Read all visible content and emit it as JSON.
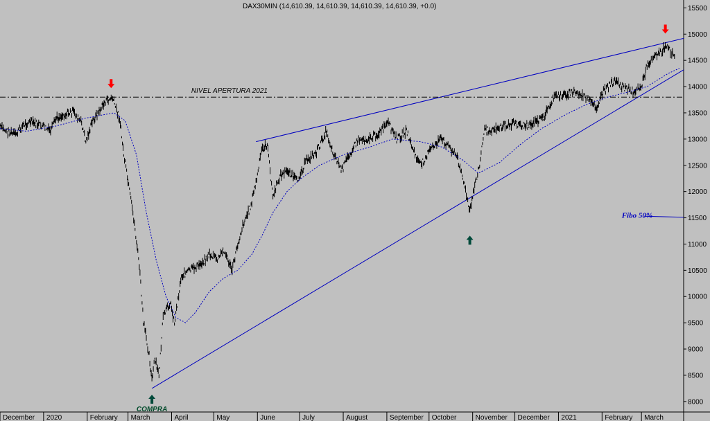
{
  "chart_data": {
    "type": "line",
    "title": "DAX30MIN (14,610.39, 14,610.39, 14,610.39, 14,610.39, +0.0)",
    "xlabel": "",
    "ylabel": "",
    "ylim": [
      7800,
      15650
    ],
    "y_ticks": [
      8000,
      8500,
      9000,
      9500,
      10000,
      10500,
      11000,
      11500,
      12000,
      12500,
      13000,
      13500,
      14000,
      14500,
      15000,
      15500
    ],
    "x_range": [
      "2019-12-01",
      "2021-03-31"
    ],
    "month_labels": [
      {
        "label": "December",
        "date": "2019-12-01"
      },
      {
        "label": "2020",
        "date": "2020-01-01"
      },
      {
        "label": "February",
        "date": "2020-02-01"
      },
      {
        "label": "March",
        "date": "2020-03-01"
      },
      {
        "label": "April",
        "date": "2020-04-01"
      },
      {
        "label": "May",
        "date": "2020-05-01"
      },
      {
        "label": "June",
        "date": "2020-06-01"
      },
      {
        "label": "July",
        "date": "2020-07-01"
      },
      {
        "label": "August",
        "date": "2020-08-01"
      },
      {
        "label": "September",
        "date": "2020-09-01"
      },
      {
        "label": "October",
        "date": "2020-10-01"
      },
      {
        "label": "November",
        "date": "2020-11-01"
      },
      {
        "label": "December",
        "date": "2020-12-01"
      },
      {
        "label": "2021",
        "date": "2021-01-01"
      },
      {
        "label": "February",
        "date": "2021-02-01"
      },
      {
        "label": "March",
        "date": "2021-03-01"
      }
    ],
    "series": [
      {
        "color": "#000000",
        "style": "dense-bars",
        "points": [
          [
            "2019-12-01",
            13230
          ],
          [
            "2019-12-06",
            13150
          ],
          [
            "2019-12-12",
            13080
          ],
          [
            "2019-12-18",
            13280
          ],
          [
            "2019-12-23",
            13320
          ],
          [
            "2019-12-31",
            13250
          ],
          [
            "2020-01-06",
            13150
          ],
          [
            "2020-01-10",
            13400
          ],
          [
            "2020-01-17",
            13480
          ],
          [
            "2020-01-22",
            13520
          ],
          [
            "2020-01-28",
            13300
          ],
          [
            "2020-01-31",
            12950
          ],
          [
            "2020-02-05",
            13350
          ],
          [
            "2020-02-10",
            13550
          ],
          [
            "2020-02-14",
            13720
          ],
          [
            "2020-02-19",
            13780
          ],
          [
            "2020-02-24",
            13400
          ],
          [
            "2020-02-27",
            12700
          ],
          [
            "2020-03-02",
            12000
          ],
          [
            "2020-03-05",
            11500
          ],
          [
            "2020-03-09",
            10600
          ],
          [
            "2020-03-12",
            9500
          ],
          [
            "2020-03-16",
            8900
          ],
          [
            "2020-03-18",
            8400
          ],
          [
            "2020-03-20",
            8800
          ],
          [
            "2020-03-23",
            8500
          ],
          [
            "2020-03-26",
            9600
          ],
          [
            "2020-03-31",
            9900
          ],
          [
            "2020-04-03",
            9500
          ],
          [
            "2020-04-08",
            10400
          ],
          [
            "2020-04-14",
            10500
          ],
          [
            "2020-04-21",
            10600
          ],
          [
            "2020-04-28",
            10800
          ],
          [
            "2020-05-04",
            10700
          ],
          [
            "2020-05-08",
            10900
          ],
          [
            "2020-05-14",
            10500
          ],
          [
            "2020-05-18",
            11000
          ],
          [
            "2020-05-22",
            11400
          ],
          [
            "2020-05-27",
            11700
          ],
          [
            "2020-06-01",
            12300
          ],
          [
            "2020-06-04",
            12800
          ],
          [
            "2020-06-08",
            12900
          ],
          [
            "2020-06-12",
            11900
          ],
          [
            "2020-06-17",
            12300
          ],
          [
            "2020-06-23",
            12400
          ],
          [
            "2020-06-29",
            12200
          ],
          [
            "2020-07-06",
            12600
          ],
          [
            "2020-07-13",
            12750
          ],
          [
            "2020-07-20",
            13150
          ],
          [
            "2020-07-24",
            12800
          ],
          [
            "2020-07-31",
            12400
          ],
          [
            "2020-08-05",
            12700
          ],
          [
            "2020-08-12",
            13000
          ],
          [
            "2020-08-19",
            13000
          ],
          [
            "2020-08-26",
            13100
          ],
          [
            "2020-09-02",
            13300
          ],
          [
            "2020-09-08",
            13000
          ],
          [
            "2020-09-15",
            13150
          ],
          [
            "2020-09-21",
            12700
          ],
          [
            "2020-09-25",
            12500
          ],
          [
            "2020-10-02",
            12800
          ],
          [
            "2020-10-09",
            13000
          ],
          [
            "2020-10-14",
            12900
          ],
          [
            "2020-10-20",
            12700
          ],
          [
            "2020-10-23",
            12500
          ],
          [
            "2020-10-27",
            12000
          ],
          [
            "2020-10-30",
            11600
          ],
          [
            "2020-11-03",
            12200
          ],
          [
            "2020-11-06",
            12500
          ],
          [
            "2020-11-09",
            13150
          ],
          [
            "2020-11-16",
            13200
          ],
          [
            "2020-11-24",
            13250
          ],
          [
            "2020-12-01",
            13300
          ],
          [
            "2020-12-08",
            13250
          ],
          [
            "2020-12-14",
            13300
          ],
          [
            "2020-12-21",
            13400
          ],
          [
            "2020-12-29",
            13800
          ],
          [
            "2021-01-06",
            13850
          ],
          [
            "2021-01-12",
            13900
          ],
          [
            "2021-01-20",
            13800
          ],
          [
            "2021-01-28",
            13600
          ],
          [
            "2021-02-02",
            13900
          ],
          [
            "2021-02-09",
            14100
          ],
          [
            "2021-02-16",
            14000
          ],
          [
            "2021-02-23",
            13900
          ],
          [
            "2021-03-01",
            14000
          ],
          [
            "2021-03-05",
            14400
          ],
          [
            "2021-03-10",
            14600
          ],
          [
            "2021-03-15",
            14650
          ],
          [
            "2021-03-18",
            14780
          ],
          [
            "2021-03-22",
            14650
          ],
          [
            "2021-03-25",
            14610
          ]
        ]
      },
      {
        "color": "#0000c0",
        "style": "dotted",
        "points": [
          [
            "2019-12-01",
            13200
          ],
          [
            "2019-12-20",
            13150
          ],
          [
            "2020-01-10",
            13250
          ],
          [
            "2020-01-31",
            13400
          ],
          [
            "2020-02-20",
            13500
          ],
          [
            "2020-02-28",
            13350
          ],
          [
            "2020-03-07",
            12700
          ],
          [
            "2020-03-14",
            11600
          ],
          [
            "2020-03-21",
            10700
          ],
          [
            "2020-03-28",
            10000
          ],
          [
            "2020-04-04",
            9600
          ],
          [
            "2020-04-11",
            9500
          ],
          [
            "2020-04-18",
            9700
          ],
          [
            "2020-04-28",
            10100
          ],
          [
            "2020-05-08",
            10350
          ],
          [
            "2020-05-18",
            10500
          ],
          [
            "2020-05-28",
            10800
          ],
          [
            "2020-06-05",
            11200
          ],
          [
            "2020-06-12",
            11600
          ],
          [
            "2020-06-22",
            12000
          ],
          [
            "2020-07-02",
            12250
          ],
          [
            "2020-07-15",
            12500
          ],
          [
            "2020-08-01",
            12700
          ],
          [
            "2020-08-20",
            12850
          ],
          [
            "2020-09-05",
            13000
          ],
          [
            "2020-09-25",
            12950
          ],
          [
            "2020-10-10",
            12850
          ],
          [
            "2020-10-25",
            12600
          ],
          [
            "2020-11-05",
            12350
          ],
          [
            "2020-11-20",
            12550
          ],
          [
            "2020-12-05",
            12900
          ],
          [
            "2020-12-20",
            13200
          ],
          [
            "2021-01-05",
            13450
          ],
          [
            "2021-01-20",
            13650
          ],
          [
            "2021-02-05",
            13800
          ],
          [
            "2021-02-20",
            13900
          ],
          [
            "2021-03-05",
            14000
          ],
          [
            "2021-03-20",
            14250
          ],
          [
            "2021-03-28",
            14350
          ]
        ]
      }
    ],
    "trendlines": [
      {
        "color": "#0000c0",
        "from": [
          "2020-03-18",
          8250
        ],
        "to": [
          "2021-03-31",
          14320
        ]
      },
      {
        "color": "#0000c0",
        "from": [
          "2020-05-31",
          12950
        ],
        "to": [
          "2021-03-31",
          14920
        ]
      },
      {
        "color": "#000000",
        "style": "dash-dot",
        "from": [
          "2019-12-01",
          13800
        ],
        "to": [
          "2021-03-31",
          13800
        ]
      },
      {
        "color": "#0000c0",
        "from": [
          "2021-03-03",
          11530
        ],
        "to": [
          "2021-03-31",
          11510
        ]
      }
    ],
    "annotations": [
      {
        "text": "NIVEL APERTURA 2021",
        "date": "2020-04-15",
        "value": 13880,
        "color": "#000000",
        "kind": "italic"
      },
      {
        "text": "Fibo 50%",
        "date": "2021-02-15",
        "value": 11500,
        "color": "#0000c0",
        "kind": "blue"
      },
      {
        "text": "COMPRA",
        "date": "2020-03-18",
        "value": 7810,
        "color": "#004a2a",
        "kind": "green"
      }
    ],
    "arrows": [
      {
        "direction": "down",
        "color": "#ff0000",
        "date": "2020-02-18",
        "value": 14050
      },
      {
        "direction": "down",
        "color": "#ff0000",
        "date": "2021-03-18",
        "value": 15090
      },
      {
        "direction": "up",
        "color": "#004a3a",
        "date": "2020-03-18",
        "value": 8050
      },
      {
        "direction": "up",
        "color": "#004a3a",
        "date": "2020-10-30",
        "value": 11080
      }
    ],
    "grid": false
  }
}
